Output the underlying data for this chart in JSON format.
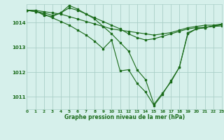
{
  "xlabel": "Graphe pression niveau de la mer (hPa)",
  "background_color": "#d6f0eb",
  "grid_color": "#aacfc8",
  "line_color": "#1a6b1a",
  "x_ticks": [
    0,
    1,
    2,
    3,
    4,
    5,
    6,
    7,
    8,
    9,
    10,
    11,
    12,
    13,
    14,
    15,
    16,
    17,
    18,
    19,
    20,
    21,
    22,
    23
  ],
  "y_ticks": [
    1011,
    1012,
    1013,
    1014
  ],
  "ylim": [
    1010.5,
    1014.75
  ],
  "xlim": [
    0,
    23
  ],
  "lines": [
    {
      "x": [
        0,
        1,
        2,
        3,
        4,
        5,
        6,
        7,
        8,
        9,
        10,
        11,
        12,
        13,
        14,
        15,
        16,
        17,
        18,
        19,
        20,
        21,
        22,
        23
      ],
      "y": [
        1014.5,
        1014.5,
        1014.45,
        1014.4,
        1014.35,
        1014.25,
        1014.15,
        1014.05,
        1013.95,
        1013.85,
        1013.75,
        1013.7,
        1013.65,
        1013.6,
        1013.55,
        1013.5,
        1013.55,
        1013.6,
        1013.7,
        1013.8,
        1013.85,
        1013.9,
        1013.9,
        1013.95
      ]
    },
    {
      "x": [
        0,
        1,
        2,
        3,
        4,
        5,
        6,
        7,
        8,
        9,
        10,
        11,
        12,
        13,
        14,
        15,
        16,
        17,
        18,
        19,
        20,
        21,
        22,
        23
      ],
      "y": [
        1014.5,
        1014.45,
        1014.4,
        1014.3,
        1014.4,
        1014.6,
        1014.5,
        1014.35,
        1014.2,
        1014.05,
        1013.9,
        1013.75,
        1013.55,
        1013.4,
        1013.3,
        1013.35,
        1013.45,
        1013.55,
        1013.65,
        1013.75,
        1013.8,
        1013.82,
        1013.85,
        1013.87
      ]
    },
    {
      "x": [
        0,
        1,
        2,
        3,
        4,
        5,
        6,
        7,
        8,
        9,
        10,
        11,
        12,
        13,
        14,
        15,
        16,
        17,
        18,
        19,
        20,
        21,
        22,
        23
      ],
      "y": [
        1014.5,
        1014.5,
        1014.3,
        1014.25,
        1014.4,
        1014.7,
        1014.55,
        1014.35,
        1014.15,
        1013.85,
        1013.55,
        1013.2,
        1012.85,
        1012.1,
        1011.7,
        1010.7,
        1011.15,
        1011.6,
        1012.2,
        1013.55,
        1013.75,
        1013.8,
        1013.87,
        1013.92
      ]
    },
    {
      "x": [
        0,
        1,
        2,
        3,
        4,
        5,
        6,
        7,
        8,
        9,
        10,
        11,
        12,
        13,
        14,
        15,
        16,
        17,
        18,
        19,
        20,
        21,
        22,
        23
      ],
      "y": [
        1014.5,
        1014.45,
        1014.35,
        1014.2,
        1014.05,
        1013.9,
        1013.7,
        1013.5,
        1013.25,
        1012.95,
        1013.3,
        1012.05,
        1012.1,
        1011.55,
        1011.2,
        1010.65,
        1011.1,
        1011.65,
        1012.2,
        1013.6,
        1013.75,
        1013.8,
        1013.87,
        1013.92
      ]
    }
  ]
}
